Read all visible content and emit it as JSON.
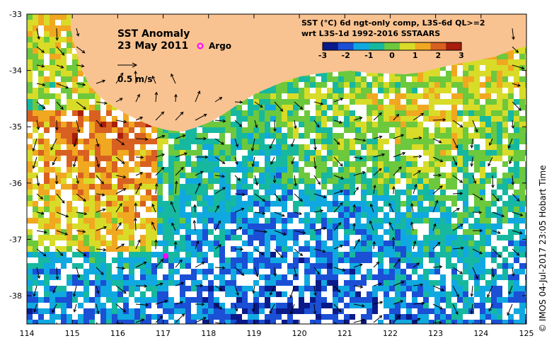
{
  "map": {
    "title": "SST Anomaly",
    "date": "23 May 2011",
    "argo_label": "Argo",
    "velocity_scale_label": "0.5 m/s",
    "colorbar_title_line1": "SST (°C) 6d ngt-only comp, L3S-6d QL>=2",
    "colorbar_title_line2": "wrt L3S-1d 1992-2016 SSTAARS",
    "colorbar_ticks": [
      "-3",
      "-2",
      "-1",
      "0",
      "1",
      "2",
      "3"
    ],
    "colorbar_colors": [
      "#0a1a8a",
      "#1a4fd6",
      "#10a8e0",
      "#16b8a0",
      "#6cc83c",
      "#d8dc28",
      "#f0a820",
      "#d86020",
      "#a81e0c"
    ],
    "x_ticks": [
      "114",
      "115",
      "116",
      "117",
      "118",
      "119",
      "120",
      "121",
      "122",
      "123",
      "124",
      "125"
    ],
    "y_ticks": [
      "-33",
      "-34",
      "-35",
      "-36",
      "-37",
      "-38"
    ],
    "credit": "© IMOS 04-Jul-2017 23:05 Hobart Time"
  },
  "colors": {
    "land": "#f9c391",
    "argo": "#ff00ff",
    "no_data": "#ffffff"
  }
}
